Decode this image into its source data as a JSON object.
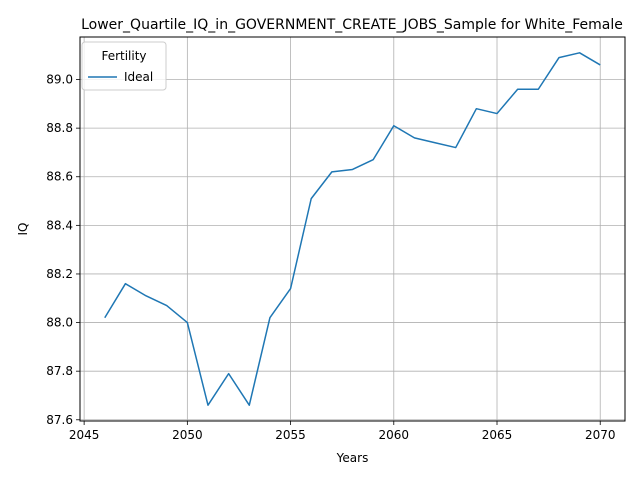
{
  "chart_data": {
    "type": "line",
    "title": "Lower_Quartile_IQ_in_GOVERNMENT_CREATE_JOBS_Sample for White_Female",
    "xlabel": "Years",
    "ylabel": "IQ",
    "xlim": [
      2044.8,
      2071.2
    ],
    "ylim": [
      87.595,
      89.175
    ],
    "grid": true,
    "legend": {
      "title": "Fertility",
      "placement": "top-left"
    },
    "x_ticks": [
      "2045",
      "2050",
      "2055",
      "2060",
      "2065",
      "2070"
    ],
    "y_ticks": [
      "87.6",
      "87.8",
      "88.0",
      "88.2",
      "88.4",
      "88.6",
      "88.8",
      "89.0"
    ],
    "series": [
      {
        "name": "Ideal",
        "color": "#1f77b4",
        "x": [
          2046,
          2047,
          2048,
          2049,
          2050,
          2051,
          2052,
          2053,
          2054,
          2055,
          2056,
          2057,
          2058,
          2059,
          2060,
          2061,
          2062,
          2063,
          2064,
          2065,
          2066,
          2067,
          2068,
          2069,
          2070
        ],
        "y": [
          88.02,
          88.16,
          88.11,
          88.07,
          88.0,
          87.66,
          87.79,
          87.66,
          88.02,
          88.14,
          88.51,
          88.62,
          88.63,
          88.67,
          88.81,
          88.76,
          88.74,
          88.72,
          88.88,
          88.86,
          88.96,
          88.96,
          89.09,
          89.11,
          89.06
        ]
      }
    ]
  }
}
